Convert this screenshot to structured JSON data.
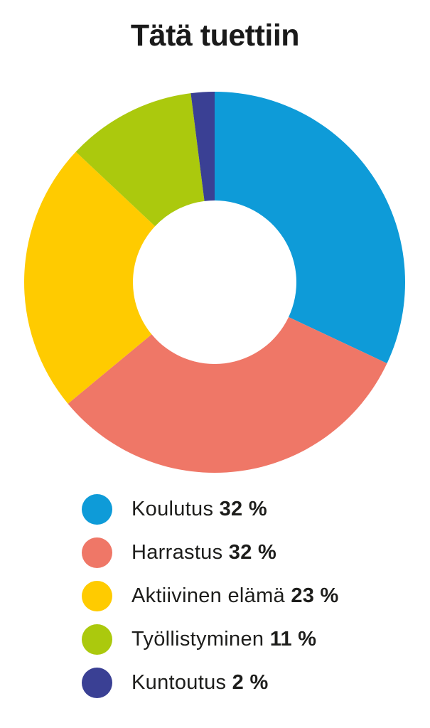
{
  "style": {
    "background": "#FFFFFF",
    "title_color": "#1A1A1A",
    "text_color": "#1D1D1B"
  },
  "chart_data": {
    "type": "pie",
    "subtype": "donut",
    "title": "Tätä tuettiin",
    "direction": "clockwise",
    "start_angle_deg": 0,
    "inner_radius_ratio": 0.43,
    "legend_position": "bottom-left",
    "total": 100,
    "categories": [
      "Koulutus",
      "Harrastus",
      "Aktiivinen elämä",
      "Työllistyminen",
      "Kuntoutus"
    ],
    "values": [
      32,
      32,
      23,
      11,
      2
    ],
    "segments": [
      {
        "label": "Koulutus",
        "value": 32,
        "percent_label": "32 %",
        "color": "#0E9BD8"
      },
      {
        "label": "Harrastus",
        "value": 32,
        "percent_label": "32 %",
        "color": "#EF7767"
      },
      {
        "label": "Aktiivinen elämä",
        "value": 23,
        "percent_label": "23 %",
        "color": "#FFCB00"
      },
      {
        "label": "Työllistyminen",
        "value": 11,
        "percent_label": "11 %",
        "color": "#ABC90D"
      },
      {
        "label": "Kuntoutus",
        "value": 2,
        "percent_label": "2 %",
        "color": "#3A4094"
      }
    ]
  }
}
